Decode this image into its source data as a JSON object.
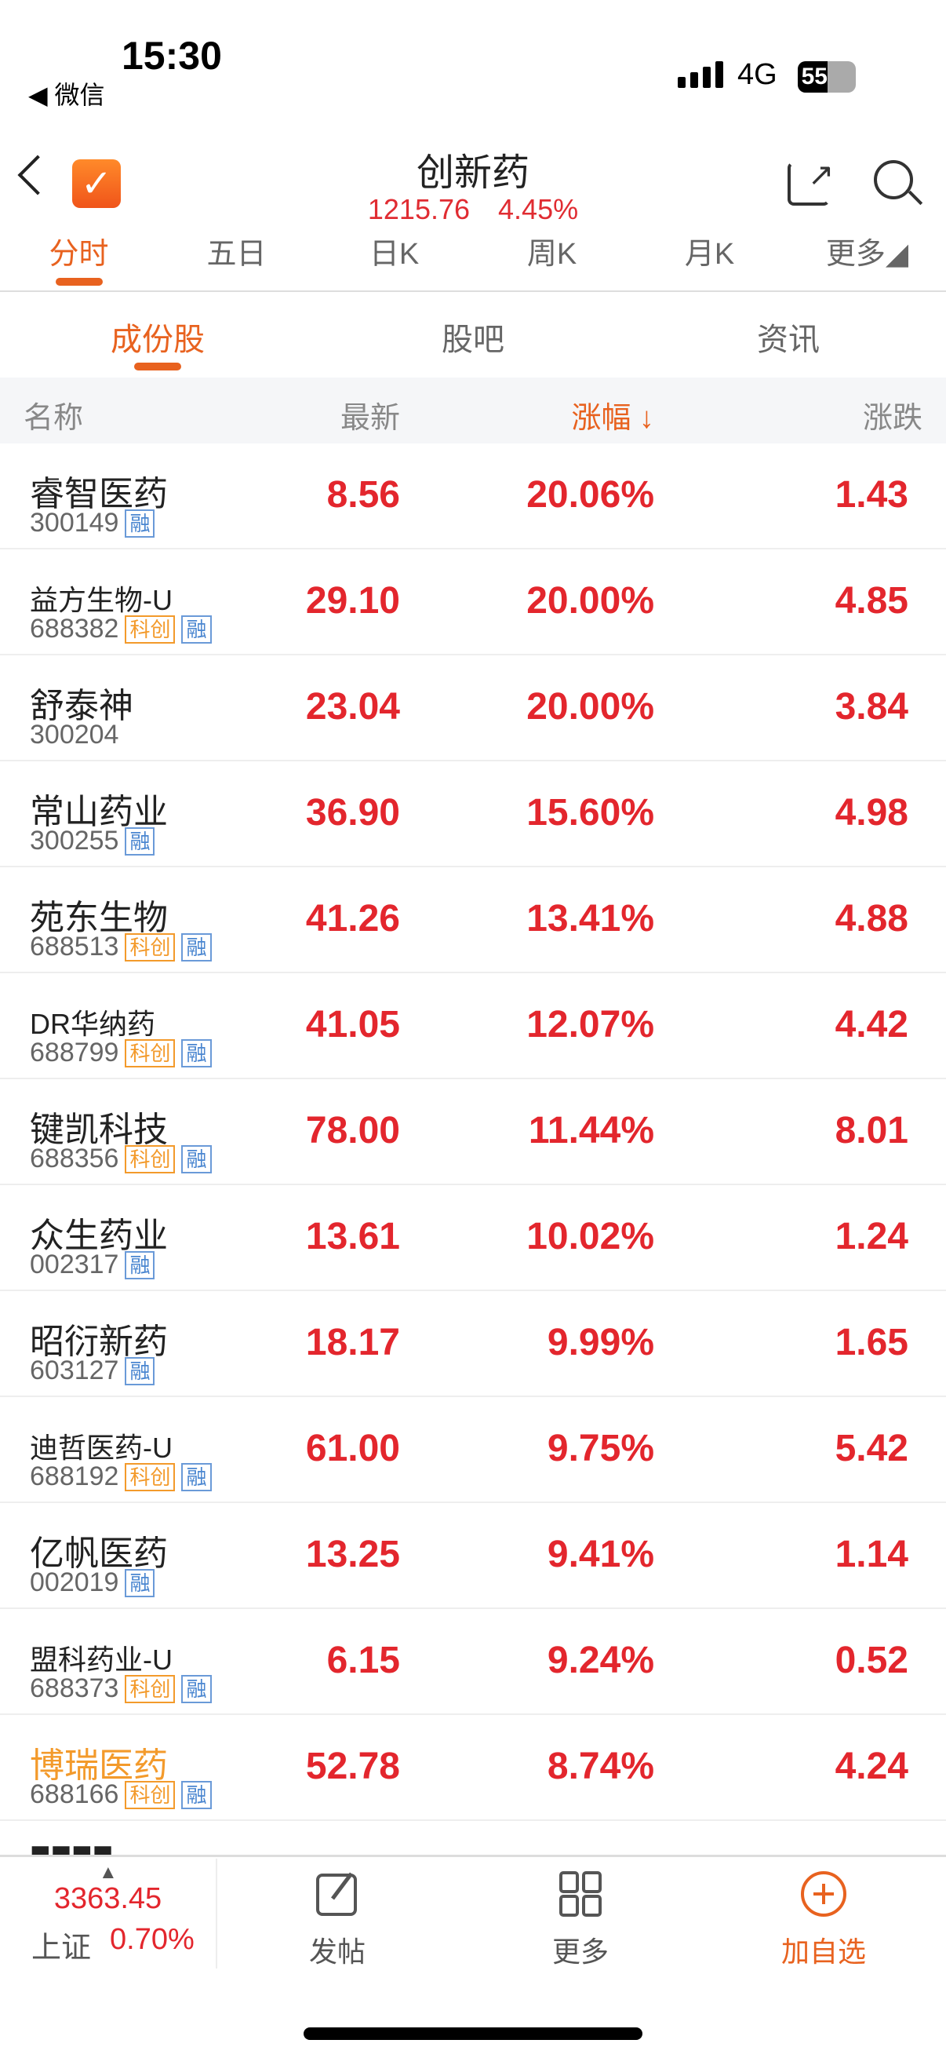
{
  "status": {
    "time": "15:30",
    "back_app": "◀ 微信",
    "network": "4G",
    "battery": "55"
  },
  "header": {
    "title": "创新药",
    "price": "1215.76",
    "change_pct": "4.45%"
  },
  "chart_tabs": [
    {
      "label": "分时",
      "active": true
    },
    {
      "label": "五日"
    },
    {
      "label": "日K"
    },
    {
      "label": "周K"
    },
    {
      "label": "月K"
    },
    {
      "label": "更多◢"
    }
  ],
  "sub_tabs": [
    {
      "label": "成份股",
      "active": true
    },
    {
      "label": "股吧"
    },
    {
      "label": "资讯"
    }
  ],
  "table": {
    "headers": {
      "name": "名称",
      "latest": "最新",
      "change_pct": "涨幅 ↓",
      "change": "涨跌"
    },
    "rows": [
      {
        "name": "睿智医药",
        "code": "300149",
        "tags": [
          "融"
        ],
        "latest": "8.56",
        "pct": "20.06%",
        "chg": "1.43"
      },
      {
        "name": "益方生物-U",
        "code": "688382",
        "tags": [
          "科创",
          "融"
        ],
        "latest": "29.10",
        "pct": "20.00%",
        "chg": "4.85"
      },
      {
        "name": "舒泰神",
        "code": "300204",
        "tags": [],
        "latest": "23.04",
        "pct": "20.00%",
        "chg": "3.84"
      },
      {
        "name": "常山药业",
        "code": "300255",
        "tags": [
          "融"
        ],
        "latest": "36.90",
        "pct": "15.60%",
        "chg": "4.98"
      },
      {
        "name": "苑东生物",
        "code": "688513",
        "tags": [
          "科创",
          "融"
        ],
        "latest": "41.26",
        "pct": "13.41%",
        "chg": "4.88"
      },
      {
        "name": "DR华纳药",
        "code": "688799",
        "tags": [
          "科创",
          "融"
        ],
        "latest": "41.05",
        "pct": "12.07%",
        "chg": "4.42"
      },
      {
        "name": "键凯科技",
        "code": "688356",
        "tags": [
          "科创",
          "融"
        ],
        "latest": "78.00",
        "pct": "11.44%",
        "chg": "8.01"
      },
      {
        "name": "众生药业",
        "code": "002317",
        "tags": [
          "融"
        ],
        "latest": "13.61",
        "pct": "10.02%",
        "chg": "1.24"
      },
      {
        "name": "昭衍新药",
        "code": "603127",
        "tags": [
          "融"
        ],
        "latest": "18.17",
        "pct": "9.99%",
        "chg": "1.65"
      },
      {
        "name": "迪哲医药-U",
        "code": "688192",
        "tags": [
          "科创",
          "融"
        ],
        "latest": "61.00",
        "pct": "9.75%",
        "chg": "5.42"
      },
      {
        "name": "亿帆医药",
        "code": "002019",
        "tags": [
          "融"
        ],
        "latest": "13.25",
        "pct": "9.41%",
        "chg": "1.14"
      },
      {
        "name": "盟科药业-U",
        "code": "688373",
        "tags": [
          "科创",
          "融"
        ],
        "latest": "6.15",
        "pct": "9.24%",
        "chg": "0.52"
      },
      {
        "name": "博瑞医药",
        "code": "688166",
        "tags": [
          "科创",
          "融"
        ],
        "latest": "52.78",
        "pct": "8.74%",
        "chg": "4.24",
        "highlight": true
      }
    ]
  },
  "bottom": {
    "index_value": "3363.45",
    "index_name": "上证",
    "index_pct": "0.70%",
    "post": "发帖",
    "more": "更多",
    "add": "加自选"
  },
  "colors": {
    "up": "#e3262d",
    "accent": "#e8621f",
    "highlight_name": "#f39a2b"
  }
}
